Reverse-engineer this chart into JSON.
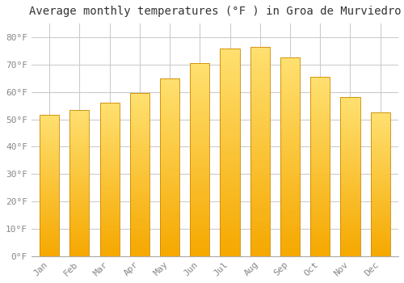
{
  "title": "Average monthly temperatures (°F ) in Groa de Murviedro",
  "months": [
    "Jan",
    "Feb",
    "Mar",
    "Apr",
    "May",
    "Jun",
    "Jul",
    "Aug",
    "Sep",
    "Oct",
    "Nov",
    "Dec"
  ],
  "values": [
    51.5,
    53.5,
    56.0,
    59.5,
    65.0,
    70.5,
    76.0,
    76.5,
    72.5,
    65.5,
    58.0,
    52.5
  ],
  "bar_color_bottom": "#F5A800",
  "bar_color_top": "#FFE070",
  "bar_edge_color": "#CC8800",
  "background_color": "#ffffff",
  "plot_bg_color": "#ffffff",
  "grid_color": "#cccccc",
  "ytick_labels": [
    "0°F",
    "10°F",
    "20°F",
    "30°F",
    "40°F",
    "50°F",
    "60°F",
    "70°F",
    "80°F"
  ],
  "ytick_values": [
    0,
    10,
    20,
    30,
    40,
    50,
    60,
    70,
    80
  ],
  "ylim": [
    0,
    85
  ],
  "title_fontsize": 10,
  "tick_fontsize": 8,
  "font_family": "monospace",
  "n_gradient_strips": 100,
  "bar_width": 0.65
}
